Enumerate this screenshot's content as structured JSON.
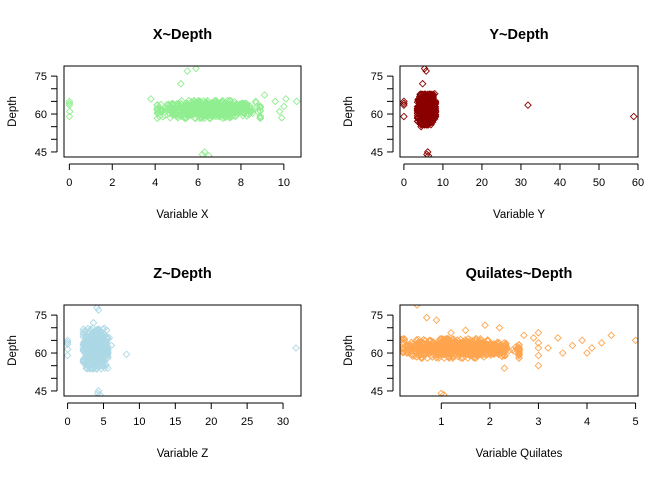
{
  "figure": {
    "background": "#ffffff"
  },
  "chart_data": [
    {
      "type": "scatter",
      "title": "X~Depth",
      "xlabel": "Variable X",
      "ylabel": "Depth",
      "xlim": [
        -0.25,
        10.8
      ],
      "ylim": [
        43,
        79
      ],
      "xticks": [
        0,
        2,
        4,
        6,
        8,
        10
      ],
      "yticks": [
        45,
        60,
        75
      ],
      "y_minor_ticks": [
        50,
        55,
        65,
        70
      ],
      "marker": "open-diamond",
      "color": "#90EE90",
      "grid": false,
      "series": [
        {
          "core": {
            "x_center": 6.5,
            "x_halfwidth": 2.4,
            "y_center": 61.8,
            "y_halfwidth": 3.5,
            "count": 700
          },
          "points": [
            [
              0,
              65
            ],
            [
              0,
              63.5
            ],
            [
              0,
              64.2
            ],
            [
              0,
              59
            ],
            [
              0.02,
              61
            ],
            [
              3.8,
              66
            ],
            [
              4.2,
              59
            ],
            [
              5.2,
              72
            ],
            [
              5.9,
              78
            ],
            [
              5.5,
              77
            ],
            [
              6.2,
              44
            ],
            [
              6.5,
              43.5
            ],
            [
              6.3,
              45
            ],
            [
              9.1,
              67.5
            ],
            [
              9.6,
              65
            ],
            [
              10.1,
              66
            ],
            [
              10.6,
              65
            ],
            [
              9.8,
              61
            ],
            [
              9.9,
              58.5
            ],
            [
              10,
              63
            ]
          ]
        }
      ]
    },
    {
      "type": "scatter",
      "title": "Y~Depth",
      "xlabel": "Variable Y",
      "ylabel": "Depth",
      "xlim": [
        -1,
        60
      ],
      "ylim": [
        43,
        79
      ],
      "xticks": [
        0,
        10,
        20,
        30,
        40,
        50,
        60
      ],
      "yticks": [
        45,
        60,
        75
      ],
      "y_minor_ticks": [
        50,
        55,
        65,
        70
      ],
      "marker": "open-diamond",
      "color": "#8B0000",
      "grid": false,
      "series": [
        {
          "core": {
            "x_center": 5.8,
            "x_halfwidth": 2.3,
            "y_center": 61.8,
            "y_halfwidth": 6,
            "count": 700
          },
          "points": [
            [
              0,
              65
            ],
            [
              0,
              63.5
            ],
            [
              0,
              64.2
            ],
            [
              0,
              59
            ],
            [
              4.8,
              72
            ],
            [
              5.3,
              78
            ],
            [
              5.7,
              77
            ],
            [
              5.9,
              44
            ],
            [
              6.3,
              43.5
            ],
            [
              6.1,
              45
            ],
            [
              4.4,
              55
            ],
            [
              7.9,
              68
            ],
            [
              31.8,
              63.5
            ],
            [
              58.9,
              59
            ]
          ]
        }
      ]
    },
    {
      "type": "scatter",
      "title": "Z~Depth",
      "xlabel": "Variable Z",
      "ylabel": "Depth",
      "xlim": [
        -0.5,
        32.5
      ],
      "ylim": [
        43,
        79
      ],
      "xticks": [
        0,
        5,
        10,
        15,
        20,
        25,
        30
      ],
      "yticks": [
        45,
        60,
        75
      ],
      "y_minor_ticks": [
        50,
        55,
        65,
        70
      ],
      "marker": "open-diamond",
      "color": "#ADD8E6",
      "grid": false,
      "series": [
        {
          "core": {
            "x_center": 3.9,
            "x_halfwidth": 1.7,
            "y_center": 61.8,
            "y_halfwidth": 8,
            "count": 700
          },
          "points": [
            [
              0,
              65
            ],
            [
              0,
              63.5
            ],
            [
              0,
              64.2
            ],
            [
              0,
              59
            ],
            [
              0.02,
              61.5
            ],
            [
              3.6,
              72
            ],
            [
              4.1,
              78
            ],
            [
              4.3,
              77
            ],
            [
              4.2,
              44
            ],
            [
              4.5,
              43.5
            ],
            [
              4.3,
              45
            ],
            [
              5.8,
              66
            ],
            [
              6.1,
              63
            ],
            [
              8.2,
              59.5
            ],
            [
              31.8,
              62
            ]
          ]
        }
      ]
    },
    {
      "type": "scatter",
      "title": "Quilates~Depth",
      "xlabel": "Variable Quilates",
      "ylabel": "Depth",
      "xlim": [
        0.15,
        5.05
      ],
      "ylim": [
        43,
        79
      ],
      "xticks": [
        1,
        2,
        3,
        4,
        5
      ],
      "yticks": [
        45,
        60,
        75
      ],
      "y_minor_ticks": [
        50,
        55,
        65,
        70
      ],
      "marker": "open-diamond",
      "color": "#FFA54F",
      "grid": false,
      "series": [
        {
          "core": {
            "x_center": 1.35,
            "x_halfwidth": 1.25,
            "y_center": 61.8,
            "y_halfwidth": 3.8,
            "count": 800
          },
          "points": [
            [
              0.5,
              79
            ],
            [
              0.7,
              74
            ],
            [
              0.9,
              73
            ],
            [
              1.0,
              44
            ],
            [
              1.05,
              43.5
            ],
            [
              1.2,
              68
            ],
            [
              1.5,
              69
            ],
            [
              1.9,
              71
            ],
            [
              2.2,
              70
            ],
            [
              2.3,
              54
            ],
            [
              3.0,
              68
            ],
            [
              3.0,
              59
            ],
            [
              3.0,
              62
            ],
            [
              3.0,
              64
            ],
            [
              3.0,
              55
            ],
            [
              3.2,
              62
            ],
            [
              3.4,
              66
            ],
            [
              3.5,
              60
            ],
            [
              3.7,
              63
            ],
            [
              3.9,
              65
            ],
            [
              4.0,
              60
            ],
            [
              4.1,
              62
            ],
            [
              4.3,
              64
            ],
            [
              4.5,
              67
            ],
            [
              5.0,
              65
            ],
            [
              2.7,
              67
            ],
            [
              2.6,
              58
            ],
            [
              2.9,
              66
            ]
          ]
        }
      ]
    }
  ]
}
